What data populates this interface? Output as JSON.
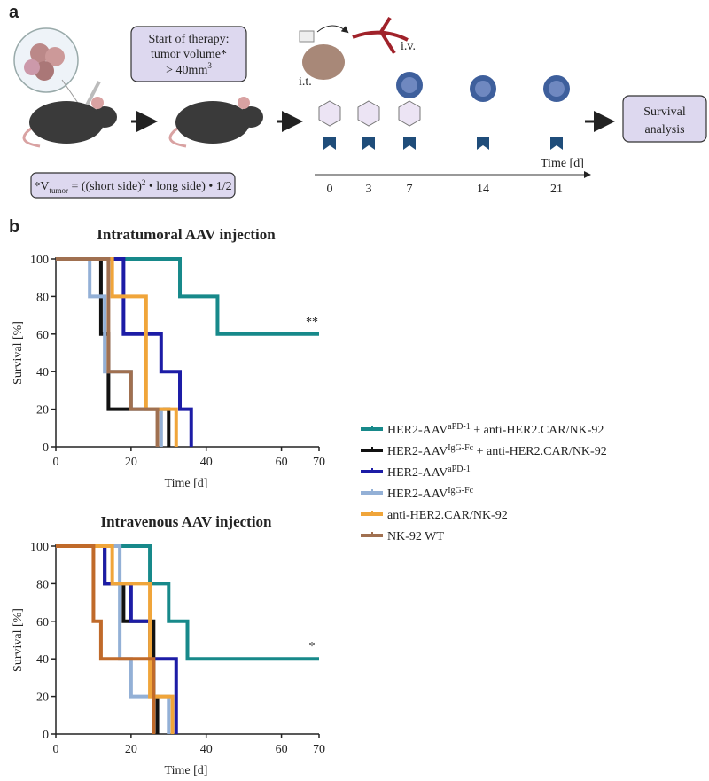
{
  "panel_a": {
    "label": "a",
    "therapy_box": {
      "lines": [
        "Start of therapy:",
        "tumor volume*",
        "> 40mm"
      ],
      "superscript": "3"
    },
    "formula": [
      "*V",
      "tumor",
      " = ((short side)",
      "2",
      " • long side) • 1/2"
    ],
    "route_iv": "i.v.",
    "route_it": "i.t.",
    "outcome_box": [
      "Survival",
      "analysis"
    ],
    "timeline": {
      "label": "Time [d]",
      "days": [
        "0",
        "3",
        "7",
        "14",
        "21"
      ]
    }
  },
  "panel_b": {
    "label": "b"
  },
  "legend": [
    {
      "name": "HER2-AAV",
      "superscript": "aPD-1",
      "rest": " + anti-HER2.CAR/NK-92"
    },
    {
      "name": "HER2-AAV",
      "superscript": "IgG-Fc",
      "rest": " + anti-HER2.CAR/NK-92"
    },
    {
      "name": "HER2-AAV",
      "superscript": "aPD-1",
      "rest": ""
    },
    {
      "name": "HER2-AAV",
      "superscript": "IgG-Fc",
      "rest": ""
    },
    {
      "name": "anti-HER2.CAR/NK-92",
      "superscript": "",
      "rest": ""
    },
    {
      "name": "NK-92 WT",
      "superscript": "",
      "rest": ""
    }
  ],
  "chart_data": [
    {
      "type": "step",
      "title": "Intratumoral AAV injection",
      "xlabel": "Time [d]",
      "ylabel": "Survival [%]",
      "xlim": [
        0,
        70
      ],
      "ylim": [
        0,
        100
      ],
      "xticks": [
        0,
        20,
        40,
        60,
        70
      ],
      "yticks": [
        0,
        20,
        40,
        60,
        80,
        100
      ],
      "annotation": "**",
      "series": [
        {
          "color": "#17898a",
          "x": [
            0,
            33,
            43,
            70
          ],
          "values": [
            100,
            80,
            60,
            60
          ]
        },
        {
          "color": "#111111",
          "x": [
            0,
            12,
            14,
            30
          ],
          "values": [
            100,
            60,
            20,
            0
          ]
        },
        {
          "color": "#1c1ca6",
          "x": [
            0,
            18,
            28,
            33,
            36
          ],
          "values": [
            100,
            60,
            40,
            20,
            0
          ]
        },
        {
          "color": "#93b0d6",
          "x": [
            0,
            9,
            13,
            20,
            28
          ],
          "values": [
            100,
            80,
            40,
            20,
            0
          ]
        },
        {
          "color": "#f0a53a",
          "x": [
            0,
            15,
            24,
            32
          ],
          "values": [
            100,
            80,
            20,
            0
          ]
        },
        {
          "color": "#a07050",
          "x": [
            0,
            14,
            20,
            27
          ],
          "values": [
            100,
            40,
            20,
            0
          ]
        }
      ]
    },
    {
      "type": "step",
      "title": "Intravenous AAV injection",
      "xlabel": "Time [d]",
      "ylabel": "Survival [%]",
      "xlim": [
        0,
        70
      ],
      "ylim": [
        0,
        100
      ],
      "xticks": [
        0,
        20,
        40,
        60,
        70
      ],
      "yticks": [
        0,
        20,
        40,
        60,
        80,
        100
      ],
      "annotation": "*",
      "series": [
        {
          "color": "#17898a",
          "x": [
            0,
            25,
            30,
            35,
            70
          ],
          "values": [
            100,
            80,
            60,
            40,
            40
          ]
        },
        {
          "color": "#111111",
          "x": [
            0,
            13,
            18,
            26,
            27
          ],
          "values": [
            100,
            80,
            60,
            20,
            0
          ]
        },
        {
          "color": "#1c1ca6",
          "x": [
            0,
            13,
            20,
            25,
            32
          ],
          "values": [
            100,
            80,
            60,
            40,
            0
          ]
        },
        {
          "color": "#93b0d6",
          "x": [
            0,
            17,
            20,
            30
          ],
          "values": [
            100,
            40,
            20,
            0
          ]
        },
        {
          "color": "#f0a53a",
          "x": [
            0,
            15,
            25,
            31
          ],
          "values": [
            100,
            80,
            20,
            0
          ]
        },
        {
          "color": "#c06a2a",
          "x": [
            0,
            10,
            12,
            26
          ],
          "values": [
            100,
            60,
            40,
            0
          ]
        }
      ]
    }
  ]
}
